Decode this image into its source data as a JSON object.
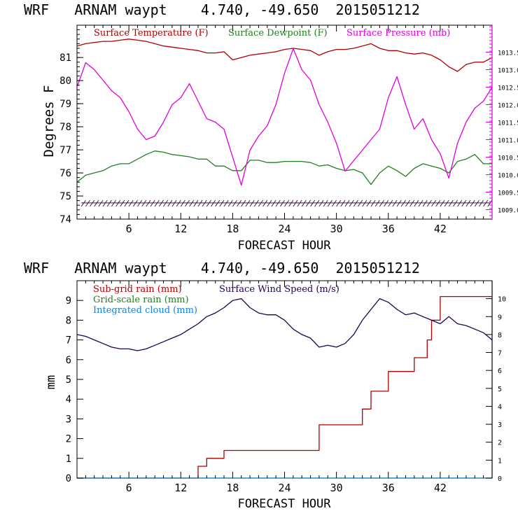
{
  "colors": {
    "temperature": "#b00000",
    "dewpoint": "#208020",
    "pressure": "#e000e0",
    "subgrid_rain": "#b00000",
    "gridscale_rain": "#208020",
    "cloud": "#1080e0",
    "wind": "#200050",
    "wind_barb": "#401040",
    "axis": "#000000"
  },
  "chart_data": [
    {
      "type": "line",
      "title": "WRF   ARNAM waypt    4.740, -49.650  2015051212",
      "xlabel": "FORECAST HOUR",
      "ylabel": "Degrees F",
      "xlim": [
        0,
        48
      ],
      "ylim": [
        74,
        82.4
      ],
      "y2lim": [
        1008.73,
        1014.27
      ],
      "x_ticks": [
        6,
        12,
        18,
        24,
        30,
        36,
        42
      ],
      "y_ticks": [
        74,
        75,
        76,
        77,
        78,
        79,
        80,
        81
      ],
      "y2_ticks": [
        "1009.0",
        "1009.5",
        "1010.0",
        "1010.5",
        "1011.0",
        "1011.5",
        "1012.0",
        "1012.5",
        "1013.0",
        "1013.5"
      ],
      "legend": [
        "Surface Temperature (F)",
        "Surface Dewpoint (F)",
        "Surface Pressure (mb)"
      ],
      "legend_position": "top",
      "wind_barbs": "along bottom, near 74.6 to 74.8",
      "series": [
        {
          "name": "Surface Temperature (F)",
          "axis": "left",
          "x": [
            0,
            1,
            2,
            3,
            4,
            5,
            6,
            7,
            8,
            9,
            10,
            11,
            12,
            13,
            14,
            15,
            16,
            17,
            18,
            19,
            20,
            21,
            22,
            23,
            24,
            25,
            26,
            27,
            28,
            29,
            30,
            31,
            32,
            33,
            34,
            35,
            36,
            37,
            38,
            39,
            40,
            41,
            42,
            43,
            44,
            45,
            46,
            47,
            48
          ],
          "values": [
            81.5,
            81.6,
            81.65,
            81.7,
            81.7,
            81.75,
            81.8,
            81.75,
            81.7,
            81.6,
            81.5,
            81.45,
            81.4,
            81.35,
            81.3,
            81.2,
            81.2,
            81.25,
            80.9,
            81.0,
            81.1,
            81.15,
            81.2,
            81.25,
            81.35,
            81.4,
            81.35,
            81.3,
            81.1,
            81.25,
            81.35,
            81.35,
            81.4,
            81.5,
            81.6,
            81.4,
            81.3,
            81.3,
            81.2,
            81.15,
            81.2,
            81.1,
            80.9,
            80.6,
            80.4,
            80.7,
            80.8,
            80.8,
            81.0
          ]
        },
        {
          "name": "Surface Dewpoint (F)",
          "axis": "left",
          "x": [
            0,
            1,
            2,
            3,
            4,
            5,
            6,
            7,
            8,
            9,
            10,
            11,
            12,
            13,
            14,
            15,
            16,
            17,
            18,
            19,
            20,
            21,
            22,
            23,
            24,
            25,
            26,
            27,
            28,
            29,
            30,
            31,
            32,
            33,
            34,
            35,
            36,
            37,
            38,
            39,
            40,
            41,
            42,
            43,
            44,
            45,
            46,
            47,
            48
          ],
          "values": [
            75.6,
            75.9,
            76.0,
            76.1,
            76.3,
            76.4,
            76.4,
            76.6,
            76.8,
            76.95,
            76.9,
            76.8,
            76.75,
            76.7,
            76.6,
            76.6,
            76.3,
            76.3,
            76.1,
            76.1,
            76.55,
            76.55,
            76.45,
            76.45,
            76.5,
            76.5,
            76.5,
            76.45,
            76.3,
            76.35,
            76.2,
            76.1,
            76.15,
            76.0,
            75.5,
            76.0,
            76.3,
            76.1,
            75.85,
            76.2,
            76.4,
            76.3,
            76.2,
            76.0,
            76.5,
            76.6,
            76.8,
            76.4,
            76.4
          ]
        },
        {
          "name": "Surface Pressure (mb)",
          "axis": "right",
          "x": [
            0,
            1,
            2,
            3,
            4,
            5,
            6,
            7,
            8,
            9,
            10,
            11,
            12,
            13,
            14,
            15,
            16,
            17,
            18,
            19,
            20,
            21,
            22,
            23,
            24,
            25,
            26,
            27,
            28,
            29,
            30,
            31,
            32,
            33,
            34,
            35,
            36,
            37,
            38,
            39,
            40,
            41,
            42,
            43,
            44,
            45,
            46,
            47,
            48
          ],
          "values": [
            1012.5,
            1013.2,
            1013.0,
            1012.7,
            1012.4,
            1012.2,
            1011.8,
            1011.3,
            1011.0,
            1011.1,
            1011.5,
            1012.0,
            1012.2,
            1012.6,
            1012.1,
            1011.6,
            1011.5,
            1011.3,
            1010.5,
            1009.7,
            1010.7,
            1011.1,
            1011.4,
            1012.0,
            1012.9,
            1013.6,
            1013.0,
            1012.7,
            1012.0,
            1011.5,
            1010.9,
            1010.1,
            1010.4,
            1010.7,
            1011.0,
            1011.3,
            1012.2,
            1012.8,
            1012.0,
            1011.3,
            1011.6,
            1011.0,
            1010.6,
            1009.9,
            1010.9,
            1011.5,
            1011.9,
            1012.1,
            1012.5
          ]
        }
      ]
    },
    {
      "type": "line",
      "title": "WRF   ARNAM waypt    4.740, -49.650  2015051212",
      "xlabel": "FORECAST HOUR",
      "ylabel": "mm",
      "xlim": [
        0,
        48
      ],
      "ylim": [
        0,
        10
      ],
      "y2lim": [
        0,
        11
      ],
      "x_ticks": [
        6,
        12,
        18,
        24,
        30,
        36,
        42
      ],
      "y_ticks": [
        0,
        1,
        2,
        3,
        4,
        5,
        6,
        7,
        8,
        9
      ],
      "y2_ticks": [
        0,
        1,
        2,
        3,
        4,
        5,
        6,
        7,
        8,
        9,
        10
      ],
      "legend": [
        "Sub-grid rain (mm)",
        "Grid-scale rain (mm)",
        "Integrated cloud (mm)",
        "Surface Wind Speed (m/s)"
      ],
      "legend_position": "top-left",
      "series": [
        {
          "name": "Sub-grid rain (mm)",
          "axis": "left",
          "x": [
            0,
            14,
            14,
            15,
            15,
            17,
            17,
            28,
            28,
            33,
            33,
            34,
            34,
            36,
            36,
            39,
            39,
            40.5,
            40.5,
            41,
            41,
            42,
            42,
            48
          ],
          "values": [
            0,
            0,
            0.6,
            0.6,
            1.0,
            1.0,
            1.4,
            1.4,
            2.7,
            2.7,
            3.5,
            3.5,
            4.4,
            4.4,
            5.4,
            5.4,
            6.1,
            6.1,
            7.0,
            7.0,
            8.0,
            8.0,
            9.2,
            9.2
          ]
        },
        {
          "name": "Grid-scale rain (mm)",
          "axis": "left",
          "x": [
            0,
            48
          ],
          "values": [
            0,
            0
          ]
        },
        {
          "name": "Integrated cloud (mm)",
          "axis": "left",
          "x": [
            0,
            48
          ],
          "values": [
            0,
            0
          ]
        },
        {
          "name": "Surface Wind Speed (m/s)",
          "axis": "right",
          "x": [
            0,
            1,
            2,
            3,
            4,
            5,
            6,
            7,
            8,
            9,
            10,
            11,
            12,
            13,
            14,
            15,
            16,
            17,
            18,
            19,
            20,
            21,
            22,
            23,
            24,
            25,
            26,
            27,
            28,
            29,
            30,
            31,
            32,
            33,
            34,
            35,
            36,
            37,
            38,
            39,
            40,
            41,
            42,
            43,
            44,
            45,
            46,
            47,
            48
          ],
          "values": [
            8.0,
            7.9,
            7.7,
            7.5,
            7.3,
            7.2,
            7.2,
            7.1,
            7.2,
            7.4,
            7.6,
            7.8,
            8.0,
            8.3,
            8.6,
            9.0,
            9.2,
            9.5,
            9.9,
            10.0,
            9.5,
            9.2,
            9.1,
            9.1,
            8.8,
            8.3,
            8.0,
            7.8,
            7.3,
            7.4,
            7.3,
            7.5,
            8.0,
            8.8,
            9.4,
            10.0,
            9.8,
            9.4,
            9.1,
            9.2,
            9.0,
            8.8,
            8.6,
            9.0,
            8.6,
            8.5,
            8.3,
            8.1,
            7.7
          ]
        }
      ]
    }
  ]
}
